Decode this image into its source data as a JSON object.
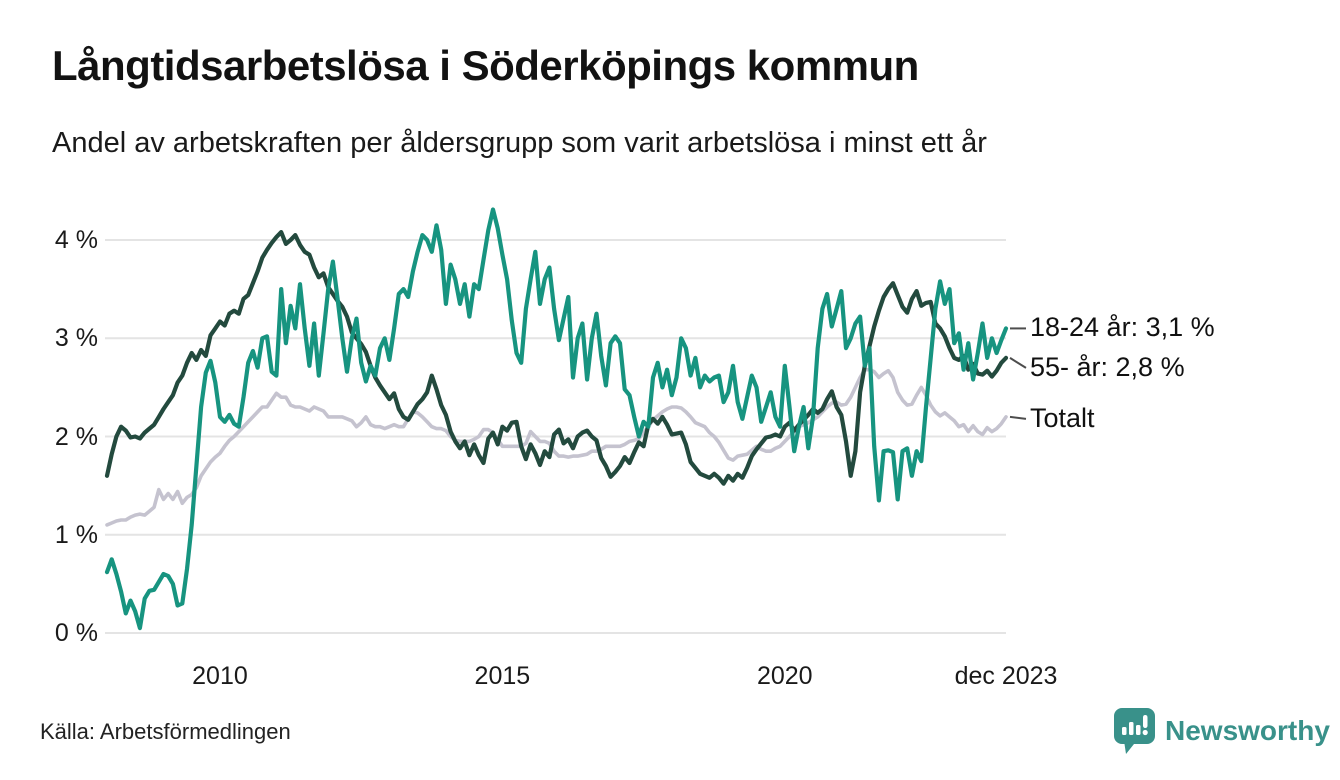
{
  "header": {
    "title": "Långtidsarbetslösa i Söderköpings kommun",
    "subtitle": "Andel av arbetskraften per åldersgrupp som varit arbetslösa i minst ett år"
  },
  "footer": {
    "source": "Källa: Arbetsförmedlingen",
    "brand": "Newsworthy",
    "logo_icon": "bar-chart-speech-bubble-icon"
  },
  "colors": {
    "series_18_24": "#179480",
    "series_55": "#234a3e",
    "series_total": "#c5c3cf",
    "gridline": "#e4e4e4",
    "label_connector": "#4d4d4d",
    "brand_teal": "#39918a",
    "text": "#111111"
  },
  "chart_data": {
    "type": "line",
    "title": "Långtidsarbetslösa i Söderköpings kommun",
    "subtitle": "Andel av arbetskraften per åldersgrupp som varit arbetslösa i minst ett år",
    "x_start": "2008-01",
    "x_end": "2023-12",
    "frequency": "monthly",
    "ylim": [
      0,
      4.45
    ],
    "grid": "horizontal",
    "legend_position": "right-edge-labels",
    "y_ticks": [
      {
        "label": "0 %",
        "value": 0
      },
      {
        "label": "1 %",
        "value": 1
      },
      {
        "label": "2 %",
        "value": 2
      },
      {
        "label": "3 %",
        "value": 3
      },
      {
        "label": "4 %",
        "value": 4
      }
    ],
    "x_ticks": [
      {
        "label": "2010",
        "month_index": 24
      },
      {
        "label": "2015",
        "month_index": 84
      },
      {
        "label": "2020",
        "month_index": 144
      },
      {
        "label": "dec 2023",
        "month_index": 191
      }
    ],
    "series": [
      {
        "name": "18-24 år",
        "end_label": "18-24 år: 3,1 %",
        "end_value_text": "3,1 %",
        "color": "#179480",
        "values": [
          0.62,
          0.75,
          0.6,
          0.42,
          0.2,
          0.33,
          0.22,
          0.05,
          0.35,
          0.43,
          0.44,
          0.52,
          0.6,
          0.58,
          0.5,
          0.28,
          0.3,
          0.65,
          1.1,
          1.7,
          2.3,
          2.65,
          2.77,
          2.55,
          2.2,
          2.15,
          2.22,
          2.13,
          2.1,
          2.4,
          2.75,
          2.87,
          2.7,
          3.0,
          3.02,
          2.66,
          2.62,
          3.5,
          2.95,
          3.33,
          3.1,
          3.55,
          3.1,
          2.72,
          3.15,
          2.62,
          3.05,
          3.5,
          3.78,
          3.4,
          3.0,
          2.66,
          3.0,
          3.2,
          2.75,
          2.56,
          2.72,
          2.62,
          2.9,
          3.0,
          2.78,
          3.1,
          3.45,
          3.5,
          3.42,
          3.68,
          3.88,
          4.05,
          4.0,
          3.88,
          4.15,
          3.9,
          3.35,
          3.75,
          3.6,
          3.35,
          3.55,
          3.22,
          3.55,
          3.5,
          3.8,
          4.1,
          4.31,
          4.12,
          3.85,
          3.6,
          3.18,
          2.85,
          2.75,
          3.3,
          3.6,
          3.88,
          3.35,
          3.6,
          3.72,
          3.3,
          2.98,
          3.2,
          3.42,
          2.6,
          3.0,
          3.15,
          2.58,
          3.0,
          3.25,
          2.82,
          2.52,
          2.95,
          3.02,
          2.95,
          2.48,
          2.42,
          2.2,
          2.0,
          2.15,
          2.1,
          2.6,
          2.75,
          2.5,
          2.68,
          2.42,
          2.6,
          3.0,
          2.9,
          2.62,
          2.8,
          2.5,
          2.62,
          2.56,
          2.6,
          2.62,
          2.35,
          2.45,
          2.72,
          2.35,
          2.18,
          2.4,
          2.62,
          2.5,
          2.15,
          2.3,
          2.45,
          2.2,
          2.1,
          2.72,
          2.3,
          1.85,
          2.1,
          2.3,
          1.88,
          2.2,
          2.9,
          3.3,
          3.45,
          3.12,
          3.3,
          3.48,
          2.9,
          3.0,
          3.15,
          3.22,
          2.72,
          2.9,
          1.9,
          1.35,
          1.85,
          1.86,
          1.84,
          1.36,
          1.85,
          1.88,
          1.6,
          1.85,
          1.75,
          2.3,
          2.8,
          3.3,
          3.58,
          3.35,
          3.5,
          2.95,
          3.05,
          2.68,
          2.95,
          2.58,
          2.85,
          3.15,
          2.8,
          3.0,
          2.85,
          2.98,
          3.1
        ]
      },
      {
        "name": "55- år",
        "end_label": "55- år: 2,8 %",
        "end_value_text": "2,8 %",
        "color": "#234a3e",
        "values": [
          1.6,
          1.82,
          2.0,
          2.1,
          2.06,
          1.99,
          2.0,
          1.98,
          2.04,
          2.08,
          2.12,
          2.2,
          2.28,
          2.35,
          2.42,
          2.55,
          2.62,
          2.75,
          2.85,
          2.78,
          2.88,
          2.82,
          3.03,
          3.1,
          3.17,
          3.13,
          3.25,
          3.28,
          3.25,
          3.4,
          3.44,
          3.56,
          3.68,
          3.82,
          3.9,
          3.97,
          4.03,
          4.08,
          3.96,
          4.0,
          4.05,
          3.95,
          3.88,
          3.85,
          3.72,
          3.62,
          3.66,
          3.52,
          3.45,
          3.38,
          3.32,
          3.22,
          3.06,
          3.0,
          2.94,
          2.86,
          2.72,
          2.6,
          2.52,
          2.45,
          2.38,
          2.44,
          2.28,
          2.2,
          2.17,
          2.25,
          2.33,
          2.38,
          2.45,
          2.62,
          2.48,
          2.32,
          2.22,
          2.05,
          1.95,
          1.88,
          1.95,
          1.81,
          1.92,
          1.81,
          1.73,
          1.98,
          2.04,
          1.92,
          2.1,
          2.06,
          2.14,
          2.15,
          1.9,
          1.77,
          1.92,
          1.83,
          1.71,
          1.85,
          1.79,
          2.02,
          2.07,
          1.93,
          1.97,
          1.88,
          2.0,
          2.04,
          2.06,
          2.0,
          1.96,
          1.78,
          1.7,
          1.59,
          1.64,
          1.7,
          1.79,
          1.73,
          1.84,
          1.94,
          1.9,
          2.12,
          2.18,
          2.13,
          2.2,
          2.12,
          2.02,
          2.03,
          2.04,
          1.92,
          1.74,
          1.68,
          1.62,
          1.6,
          1.58,
          1.62,
          1.58,
          1.52,
          1.6,
          1.55,
          1.62,
          1.58,
          1.68,
          1.8,
          1.87,
          1.93,
          1.99,
          2.0,
          2.02,
          2.0,
          2.1,
          2.14,
          2.06,
          2.12,
          2.17,
          2.22,
          2.28,
          2.24,
          2.28,
          2.38,
          2.46,
          2.3,
          2.22,
          1.95,
          1.6,
          1.85,
          2.45,
          2.72,
          2.92,
          3.12,
          3.28,
          3.42,
          3.5,
          3.56,
          3.44,
          3.32,
          3.26,
          3.4,
          3.48,
          3.33,
          3.36,
          3.37,
          3.15,
          3.1,
          3.02,
          2.9,
          2.8,
          2.78,
          2.82,
          2.68,
          2.74,
          2.64,
          2.63,
          2.67,
          2.61,
          2.67,
          2.75,
          2.8
        ]
      },
      {
        "name": "Totalt",
        "end_label": "Totalt",
        "end_value_text": "",
        "color": "#c5c3cf",
        "values": [
          1.1,
          1.12,
          1.14,
          1.15,
          1.15,
          1.18,
          1.2,
          1.21,
          1.2,
          1.24,
          1.28,
          1.46,
          1.36,
          1.42,
          1.36,
          1.44,
          1.32,
          1.38,
          1.41,
          1.48,
          1.6,
          1.67,
          1.74,
          1.79,
          1.83,
          1.9,
          1.96,
          2.0,
          2.05,
          2.1,
          2.15,
          2.2,
          2.25,
          2.3,
          2.3,
          2.37,
          2.44,
          2.4,
          2.4,
          2.32,
          2.3,
          2.3,
          2.28,
          2.26,
          2.3,
          2.28,
          2.26,
          2.2,
          2.2,
          2.2,
          2.2,
          2.18,
          2.16,
          2.1,
          2.14,
          2.2,
          2.12,
          2.1,
          2.1,
          2.08,
          2.1,
          2.12,
          2.1,
          2.1,
          2.18,
          2.25,
          2.24,
          2.2,
          2.15,
          2.1,
          2.08,
          2.08,
          2.06,
          2.0,
          1.96,
          1.95,
          1.95,
          1.95,
          1.97,
          2.0,
          2.07,
          2.07,
          2.04,
          1.97,
          1.9,
          1.9,
          1.9,
          1.9,
          1.9,
          1.93,
          2.05,
          2.0,
          1.95,
          1.95,
          1.93,
          1.85,
          1.8,
          1.8,
          1.79,
          1.8,
          1.8,
          1.81,
          1.82,
          1.85,
          1.85,
          1.87,
          1.9,
          1.9,
          1.9,
          1.9,
          1.92,
          1.95,
          1.96,
          1.98,
          2.04,
          2.1,
          2.17,
          2.21,
          2.25,
          2.28,
          2.3,
          2.3,
          2.29,
          2.25,
          2.2,
          2.14,
          2.12,
          2.1,
          2.04,
          2.0,
          1.94,
          1.86,
          1.78,
          1.76,
          1.8,
          1.81,
          1.82,
          1.86,
          1.9,
          1.87,
          1.85,
          1.85,
          1.88,
          1.9,
          1.95,
          2.0,
          2.05,
          2.1,
          2.12,
          2.14,
          2.17,
          2.2,
          2.25,
          2.3,
          2.34,
          2.35,
          2.32,
          2.33,
          2.4,
          2.5,
          2.6,
          2.68,
          2.68,
          2.66,
          2.6,
          2.64,
          2.67,
          2.6,
          2.45,
          2.37,
          2.32,
          2.33,
          2.42,
          2.5,
          2.42,
          2.32,
          2.25,
          2.21,
          2.24,
          2.2,
          2.16,
          2.1,
          2.12,
          2.05,
          2.11,
          2.05,
          2.02,
          2.09,
          2.05,
          2.08,
          2.13,
          2.2
        ]
      }
    ]
  }
}
